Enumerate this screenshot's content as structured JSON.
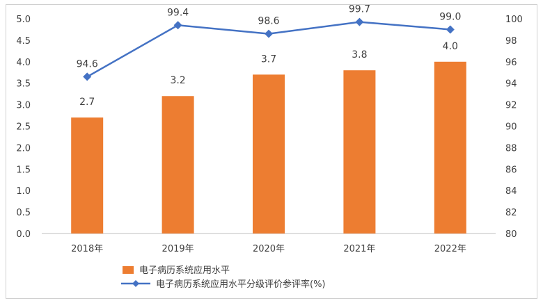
{
  "chart_data": {
    "type": "bar+line",
    "categories": [
      "2018年",
      "2019年",
      "2020年",
      "2021年",
      "2022年"
    ],
    "series": [
      {
        "name": "电子病历系统应用水平",
        "type": "bar",
        "axis": "left",
        "values": [
          2.7,
          3.2,
          3.7,
          3.8,
          4.0
        ],
        "data_labels": [
          "2.7",
          "3.2",
          "3.7",
          "3.8",
          "4.0"
        ],
        "color": "#ED7D31"
      },
      {
        "name": "电子病历系统应用水平分级评价参评率(%)",
        "type": "line",
        "axis": "right",
        "values": [
          94.6,
          99.4,
          98.6,
          99.7,
          99.0
        ],
        "data_labels": [
          "94.6",
          "99.4",
          "98.6",
          "99.7",
          "99.0"
        ],
        "color": "#4472C4",
        "marker": "diamond"
      }
    ],
    "y_left": {
      "lim": [
        0,
        5
      ],
      "ticks": [
        "0.0",
        "0.5",
        "1.0",
        "1.5",
        "2.0",
        "2.5",
        "3.0",
        "3.5",
        "4.0",
        "4.5",
        "5.0"
      ]
    },
    "y_right": {
      "lim": [
        80,
        100
      ],
      "ticks": [
        "80",
        "82",
        "84",
        "86",
        "88",
        "90",
        "92",
        "94",
        "96",
        "98",
        "100"
      ]
    },
    "grid": false,
    "legend": "bottom-center"
  }
}
